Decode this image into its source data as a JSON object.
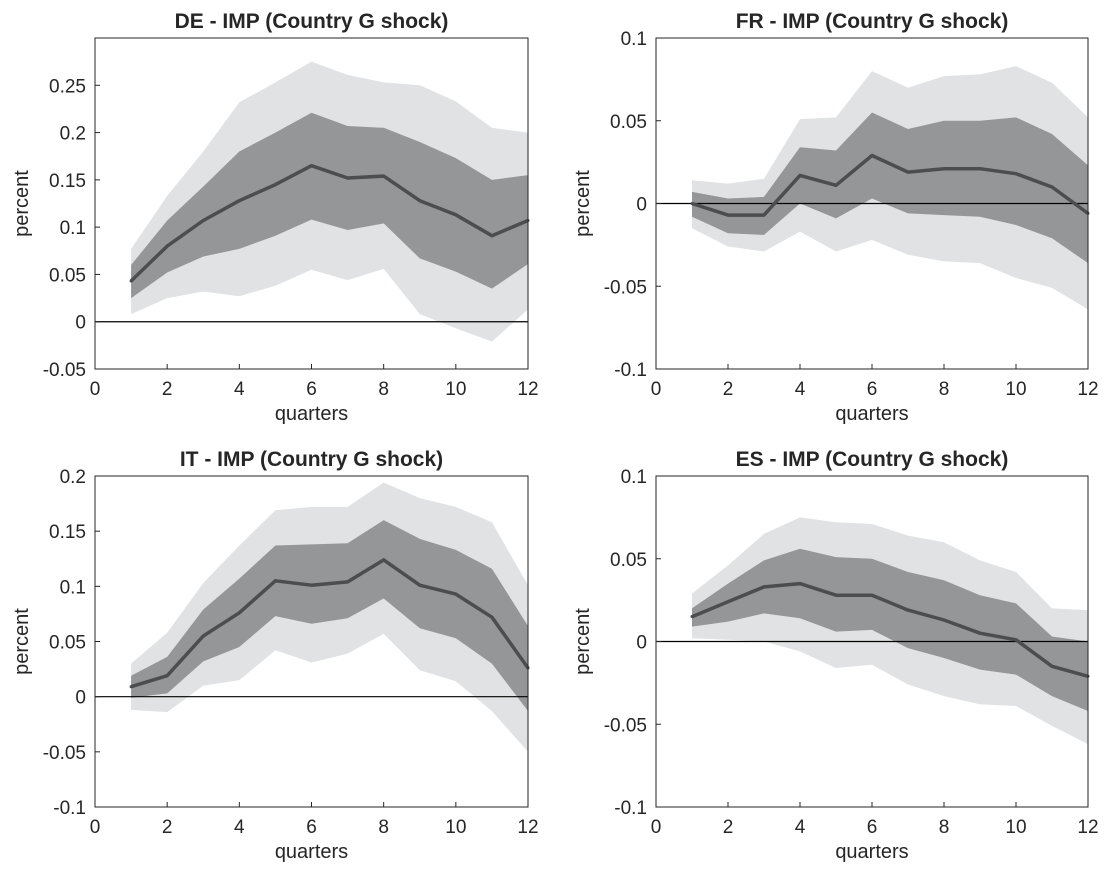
{
  "chart_data": [
    {
      "type": "line",
      "title": "DE - IMP (Country G shock)",
      "xlabel": "quarters",
      "ylabel": "percent",
      "xlim": [
        0,
        12
      ],
      "ylim": [
        -0.05,
        0.3
      ],
      "xticks": [
        "0",
        "2",
        "4",
        "6",
        "8",
        "10",
        "12"
      ],
      "yticks": [
        "-0.05",
        "0",
        "0.05",
        "0.1",
        "0.15",
        "0.2",
        "0.25"
      ],
      "grid": false,
      "legend": "none",
      "colors": {
        "median": "#4d4d4f",
        "inner_band": "#959698",
        "outer_band": "#e1e2e3",
        "zero_line": "#000000"
      },
      "x": [
        1,
        2,
        3,
        4,
        5,
        6,
        7,
        8,
        9,
        10,
        11,
        12
      ],
      "median": [
        0.043,
        0.08,
        0.107,
        0.128,
        0.145,
        0.165,
        0.152,
        0.154,
        0.128,
        0.113,
        0.091,
        0.107
      ],
      "inner_band": {
        "lower": [
          0.025,
          0.052,
          0.069,
          0.077,
          0.091,
          0.108,
          0.097,
          0.104,
          0.067,
          0.053,
          0.035,
          0.061
        ],
        "upper": [
          0.06,
          0.107,
          0.143,
          0.18,
          0.2,
          0.221,
          0.207,
          0.205,
          0.19,
          0.173,
          0.15,
          0.155
        ]
      },
      "outer_band": {
        "lower": [
          0.008,
          0.025,
          0.032,
          0.027,
          0.038,
          0.055,
          0.044,
          0.056,
          0.008,
          -0.007,
          -0.021,
          0.013
        ],
        "upper": [
          0.077,
          0.133,
          0.18,
          0.232,
          0.253,
          0.275,
          0.261,
          0.253,
          0.25,
          0.233,
          0.205,
          0.2
        ]
      }
    },
    {
      "type": "line",
      "title": "FR - IMP (Country G shock)",
      "xlabel": "quarters",
      "ylabel": "percent",
      "xlim": [
        0,
        12
      ],
      "ylim": [
        -0.1,
        0.1
      ],
      "xticks": [
        "0",
        "2",
        "4",
        "6",
        "8",
        "10",
        "12"
      ],
      "yticks": [
        "-0.1",
        "-0.05",
        "0",
        "0.05",
        "0.1"
      ],
      "grid": false,
      "legend": "none",
      "colors": {
        "median": "#4d4d4f",
        "inner_band": "#959698",
        "outer_band": "#e1e2e3",
        "zero_line": "#000000"
      },
      "x": [
        1,
        2,
        3,
        4,
        5,
        6,
        7,
        8,
        9,
        10,
        11,
        12
      ],
      "median": [
        0.0,
        -0.007,
        -0.007,
        0.017,
        0.011,
        0.029,
        0.019,
        0.021,
        0.021,
        0.018,
        0.01,
        -0.006
      ],
      "inner_band": {
        "lower": [
          -0.008,
          -0.018,
          -0.019,
          0.0,
          -0.009,
          0.003,
          -0.006,
          -0.007,
          -0.008,
          -0.013,
          -0.021,
          -0.036
        ],
        "upper": [
          0.007,
          0.003,
          0.004,
          0.034,
          0.032,
          0.055,
          0.045,
          0.05,
          0.05,
          0.052,
          0.042,
          0.023
        ]
      },
      "outer_band": {
        "lower": [
          -0.015,
          -0.026,
          -0.029,
          -0.017,
          -0.029,
          -0.022,
          -0.031,
          -0.035,
          -0.036,
          -0.045,
          -0.051,
          -0.064
        ],
        "upper": [
          0.014,
          0.012,
          0.015,
          0.051,
          0.052,
          0.08,
          0.07,
          0.077,
          0.078,
          0.083,
          0.073,
          0.052
        ]
      }
    },
    {
      "type": "line",
      "title": "IT - IMP (Country G shock)",
      "xlabel": "quarters",
      "ylabel": "percent",
      "xlim": [
        0,
        12
      ],
      "ylim": [
        -0.1,
        0.2
      ],
      "xticks": [
        "0",
        "2",
        "4",
        "6",
        "8",
        "10",
        "12"
      ],
      "yticks": [
        "-0.1",
        "-0.05",
        "0",
        "0.05",
        "0.1",
        "0.15",
        "0.2"
      ],
      "grid": false,
      "legend": "none",
      "colors": {
        "median": "#4d4d4f",
        "inner_band": "#959698",
        "outer_band": "#e1e2e3",
        "zero_line": "#000000"
      },
      "x": [
        1,
        2,
        3,
        4,
        5,
        6,
        7,
        8,
        9,
        10,
        11,
        12
      ],
      "median": [
        0.009,
        0.019,
        0.055,
        0.076,
        0.105,
        0.101,
        0.104,
        0.124,
        0.101,
        0.093,
        0.072,
        0.026
      ],
      "inner_band": {
        "lower": [
          -0.001,
          0.003,
          0.032,
          0.045,
          0.073,
          0.066,
          0.071,
          0.089,
          0.062,
          0.053,
          0.03,
          -0.013
        ],
        "upper": [
          0.019,
          0.036,
          0.079,
          0.107,
          0.137,
          0.138,
          0.139,
          0.16,
          0.143,
          0.133,
          0.116,
          0.064
        ]
      },
      "outer_band": {
        "lower": [
          -0.012,
          -0.014,
          0.01,
          0.015,
          0.042,
          0.031,
          0.039,
          0.057,
          0.024,
          0.014,
          -0.013,
          -0.05
        ],
        "upper": [
          0.03,
          0.058,
          0.103,
          0.137,
          0.169,
          0.172,
          0.172,
          0.194,
          0.18,
          0.172,
          0.158,
          0.101
        ]
      }
    },
    {
      "type": "line",
      "title": "ES - IMP (Country G shock)",
      "xlabel": "quarters",
      "ylabel": "percent",
      "xlim": [
        0,
        12
      ],
      "ylim": [
        -0.1,
        0.1
      ],
      "xticks": [
        "0",
        "2",
        "4",
        "6",
        "8",
        "10",
        "12"
      ],
      "yticks": [
        "-0.1",
        "-0.05",
        "0",
        "0.05",
        "0.1"
      ],
      "grid": false,
      "legend": "none",
      "colors": {
        "median": "#4d4d4f",
        "inner_band": "#959698",
        "outer_band": "#e1e2e3",
        "zero_line": "#000000"
      },
      "x": [
        1,
        2,
        3,
        4,
        5,
        6,
        7,
        8,
        9,
        10,
        11,
        12
      ],
      "median": [
        0.015,
        0.024,
        0.033,
        0.035,
        0.028,
        0.028,
        0.019,
        0.013,
        0.005,
        0.001,
        -0.015,
        -0.021
      ],
      "inner_band": {
        "lower": [
          0.009,
          0.012,
          0.017,
          0.014,
          0.006,
          0.007,
          -0.004,
          -0.01,
          -0.017,
          -0.02,
          -0.033,
          -0.042
        ],
        "upper": [
          0.02,
          0.035,
          0.049,
          0.056,
          0.051,
          0.05,
          0.042,
          0.037,
          0.028,
          0.023,
          0.003,
          0.0
        ]
      },
      "outer_band": {
        "lower": [
          0.002,
          0.001,
          0.0,
          -0.006,
          -0.016,
          -0.014,
          -0.026,
          -0.033,
          -0.038,
          -0.039,
          -0.051,
          -0.062
        ],
        "upper": [
          0.029,
          0.046,
          0.065,
          0.075,
          0.072,
          0.071,
          0.064,
          0.06,
          0.049,
          0.042,
          0.02,
          0.019
        ]
      }
    }
  ]
}
